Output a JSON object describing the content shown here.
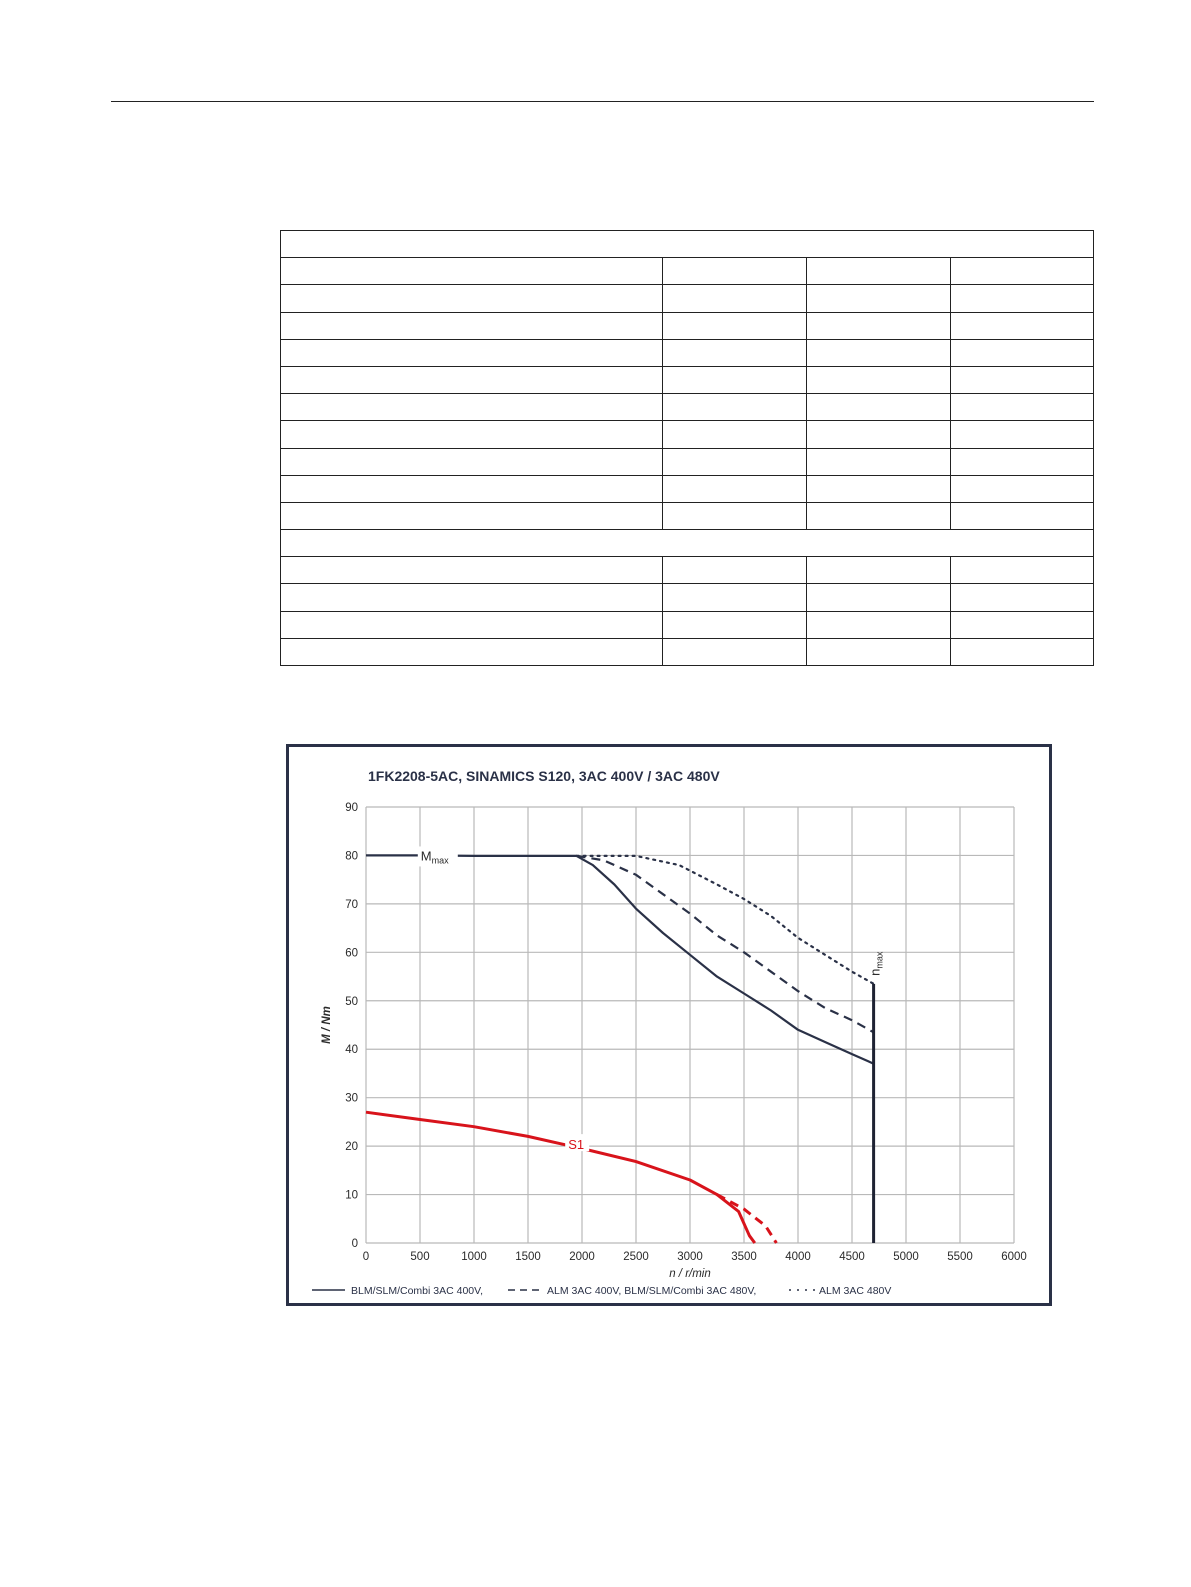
{
  "chart_data": {
    "type": "line",
    "title": "1FK2208-5AC,  SINAMICS S120,  3AC 400V / 3AC 480V",
    "xlabel": "n / r/min",
    "ylabel": "M / Nm",
    "xlim": [
      0,
      6000
    ],
    "ylim": [
      0,
      90
    ],
    "x_ticks": [
      "0",
      "500",
      "1000",
      "1500",
      "2000",
      "2500",
      "3000",
      "3500",
      "4000",
      "4500",
      "5000",
      "5500",
      "6000"
    ],
    "y_ticks": [
      "0",
      "10",
      "20",
      "30",
      "40",
      "50",
      "60",
      "70",
      "80",
      "90"
    ],
    "grid": true,
    "legend_position": "bottom",
    "series": [
      {
        "legend_label": "BLM/SLM/Combi 3AC 400V,",
        "color": "#2a3147",
        "dash": "solid",
        "points": [
          [
            0,
            80
          ],
          [
            500,
            80
          ],
          [
            1000,
            79.9
          ],
          [
            1500,
            79.9
          ],
          [
            1950,
            79.9
          ],
          [
            2100,
            78
          ],
          [
            2300,
            74
          ],
          [
            2500,
            69
          ],
          [
            2750,
            64
          ],
          [
            3000,
            59.5
          ],
          [
            3250,
            55
          ],
          [
            3500,
            51.5
          ],
          [
            3750,
            48
          ],
          [
            4000,
            44
          ],
          [
            4250,
            41.5
          ],
          [
            4500,
            39
          ],
          [
            4650,
            37.5
          ],
          [
            4700,
            37
          ]
        ]
      },
      {
        "legend_label": "ALM 3AC 400V, BLM/SLM/Combi 3AC 480V,",
        "color": "#2a3147",
        "dash": "dashed",
        "points": [
          [
            1950,
            79.9
          ],
          [
            2200,
            79
          ],
          [
            2500,
            76
          ],
          [
            2750,
            72
          ],
          [
            3000,
            68
          ],
          [
            3250,
            63.5
          ],
          [
            3500,
            60
          ],
          [
            3750,
            56
          ],
          [
            4000,
            52
          ],
          [
            4250,
            48.5
          ],
          [
            4500,
            46
          ],
          [
            4700,
            43.5
          ]
        ]
      },
      {
        "legend_label": "ALM 3AC 480V",
        "color": "#2a3147",
        "dash": "dotted",
        "points": [
          [
            1950,
            79.9
          ],
          [
            2500,
            79.9
          ],
          [
            2900,
            78
          ],
          [
            3250,
            74
          ],
          [
            3500,
            71
          ],
          [
            3750,
            67.5
          ],
          [
            4000,
            63
          ],
          [
            4250,
            59.5
          ],
          [
            4500,
            56
          ],
          [
            4700,
            53.5
          ]
        ]
      },
      {
        "label": "S1",
        "color": "#d8131b",
        "dash": "solid",
        "points": [
          [
            0,
            27
          ],
          [
            500,
            25.5
          ],
          [
            1000,
            24
          ],
          [
            1500,
            22
          ],
          [
            1800,
            20.5
          ],
          [
            2000,
            19.5
          ],
          [
            2500,
            16.8
          ],
          [
            3000,
            13
          ],
          [
            3250,
            10
          ],
          [
            3450,
            6.5
          ],
          [
            3550,
            1.5
          ],
          [
            3600,
            0
          ]
        ]
      },
      {
        "label": "S1",
        "color": "#d8131b",
        "dash": "dashed",
        "points": [
          [
            3250,
            10
          ],
          [
            3500,
            7
          ],
          [
            3700,
            3.5
          ],
          [
            3800,
            0
          ]
        ]
      }
    ],
    "annotations": {
      "m_max": {
        "main": "M",
        "sub": "max",
        "x": 600,
        "y": 80
      },
      "n_max": {
        "main": "n",
        "sub": "max",
        "x": 4700,
        "y_top": 53.5
      },
      "s1": {
        "text": "S1",
        "x": 1900,
        "y": 20
      }
    }
  }
}
